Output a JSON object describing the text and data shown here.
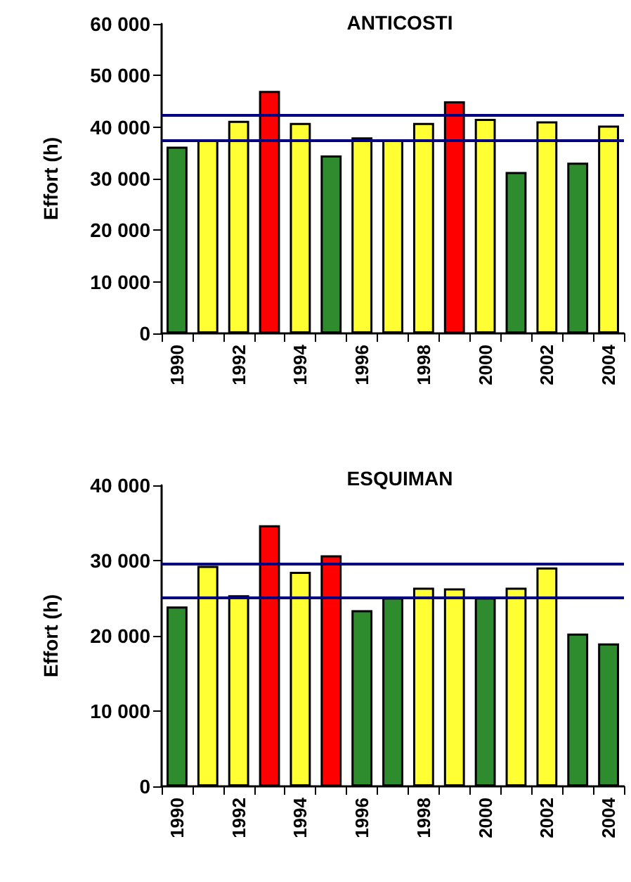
{
  "chart_data": [
    {
      "type": "bar",
      "title": "ANTICOSTI",
      "ylabel": "Effort (h)",
      "categories": [
        "1990",
        null,
        "1992",
        null,
        "1994",
        null,
        "1996",
        null,
        "1998",
        null,
        "2000",
        null,
        "2002",
        null,
        "2004"
      ],
      "values": [
        36200,
        37600,
        41200,
        47000,
        40800,
        34500,
        38000,
        37600,
        40800,
        45000,
        41600,
        31300,
        41100,
        33100,
        40300
      ],
      "colors": [
        "#2e8b2e",
        "#ffff33",
        "#ffff33",
        "#ff0000",
        "#ffff33",
        "#2e8b2e",
        "#ffff33",
        "#ffff33",
        "#ffff33",
        "#ff0000",
        "#ffff33",
        "#2e8b2e",
        "#ffff33",
        "#2e8b2e",
        "#ffff33"
      ],
      "ylim": [
        0,
        60000
      ],
      "yticks": [
        {
          "value": 0,
          "label": "0"
        },
        {
          "value": 10000,
          "label": "10 000"
        },
        {
          "value": 20000,
          "label": "20 000"
        },
        {
          "value": 30000,
          "label": "30 000"
        },
        {
          "value": 40000,
          "label": "40 000"
        },
        {
          "value": 50000,
          "label": "50 000"
        },
        {
          "value": 60000,
          "label": "60 000"
        }
      ],
      "ref_lines": [
        {
          "axis": "y",
          "value": 42400,
          "color": "#000080"
        },
        {
          "axis": "y",
          "value": 37400,
          "color": "#000080"
        }
      ],
      "grid": false
    },
    {
      "type": "bar",
      "title": "ESQUIMAN",
      "ylabel": "Effort (h)",
      "categories": [
        "1990",
        null,
        "1992",
        null,
        "1994",
        null,
        "1996",
        null,
        "1998",
        null,
        "2000",
        null,
        "2002",
        null,
        "2004"
      ],
      "values": [
        23900,
        29300,
        25400,
        34700,
        28500,
        30700,
        23400,
        25100,
        26400,
        26300,
        25100,
        26400,
        29100,
        20300,
        19000
      ],
      "colors": [
        "#2e8b2e",
        "#ffff33",
        "#ffff33",
        "#ff0000",
        "#ffff33",
        "#ff0000",
        "#2e8b2e",
        "#2e8b2e",
        "#ffff33",
        "#ffff33",
        "#2e8b2e",
        "#ffff33",
        "#ffff33",
        "#2e8b2e",
        "#2e8b2e"
      ],
      "ylim": [
        0,
        40000
      ],
      "yticks": [
        {
          "value": 0,
          "label": "0"
        },
        {
          "value": 10000,
          "label": "10 000"
        },
        {
          "value": 20000,
          "label": "20 000"
        },
        {
          "value": 30000,
          "label": "30 000"
        },
        {
          "value": 40000,
          "label": "40 000"
        }
      ],
      "ref_lines": [
        {
          "axis": "y",
          "value": 29600,
          "color": "#000080"
        },
        {
          "axis": "y",
          "value": 25100,
          "color": "#000080"
        }
      ],
      "grid": false
    }
  ]
}
